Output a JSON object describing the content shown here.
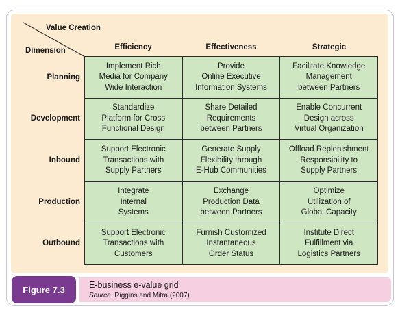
{
  "corner": {
    "value_creation": "Value Creation",
    "dimension": "Dimension"
  },
  "columns": [
    "Efficiency",
    "Effectiveness",
    "Strategic"
  ],
  "rows": [
    {
      "label": "Planning",
      "cells": [
        "Implement Rich\nMedia for Company\nWide Interaction",
        "Provide\nOnline Executive\nInformation Systems",
        "Facilitate Knowledge\nManagement\nbetween Partners"
      ]
    },
    {
      "label": "Development",
      "cells": [
        "Standardize\nPlatform for Cross\nFunctional Design",
        "Share Detailed\nRequirements\nbetween Partners",
        "Enable Concurrent\nDesign across\nVirtual Organization"
      ]
    },
    {
      "label": "Inbound",
      "cells": [
        "Support Electronic\nTransactions with\nSupply Partners",
        "Generate Supply\nFlexibility through\nE-Hub Communities",
        "Offload Replenishment\nResponsibility to\nSupply Partners"
      ]
    },
    {
      "label": "Production",
      "cells": [
        "Integrate\nInternal\nSystems",
        "Exchange\nProduction Data\nbetween Partners",
        "Optimize\nUtilization of\nGlobal Capacity"
      ]
    },
    {
      "label": "Outbound",
      "cells": [
        "Support Electronic\nTransactions with\nCustomers",
        "Furnish Customized\nInstantaneous\nOrder Status",
        "Institute Direct\nFulfillment via\nLogistics Partners"
      ]
    }
  ],
  "caption": {
    "figure_label": "Figure 7.3",
    "title": "E-business e-value grid",
    "source_label": "Source:",
    "source_text": " Riggins and Mitra (2007)"
  },
  "colors": {
    "panel_bg": "#fcebd0",
    "cell_bg": "#cfe6c3",
    "figure_label_bg": "#7a3a8f",
    "caption_bg": "#f6cfe0"
  }
}
